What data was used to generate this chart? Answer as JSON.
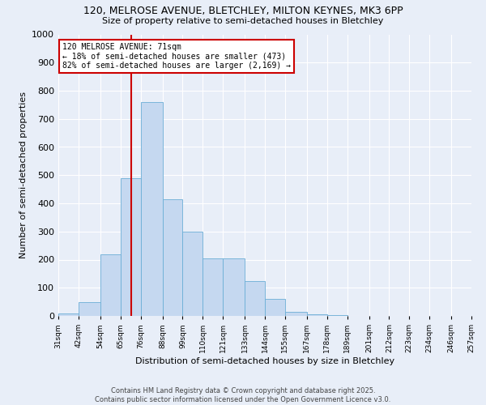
{
  "title_line1": "120, MELROSE AVENUE, BLETCHLEY, MILTON KEYNES, MK3 6PP",
  "title_line2": "Size of property relative to semi-detached houses in Bletchley",
  "xlabel": "Distribution of semi-detached houses by size in Bletchley",
  "ylabel": "Number of semi-detached properties",
  "bin_labels": [
    "31sqm",
    "42sqm",
    "54sqm",
    "65sqm",
    "76sqm",
    "88sqm",
    "99sqm",
    "110sqm",
    "121sqm",
    "133sqm",
    "144sqm",
    "155sqm",
    "167sqm",
    "178sqm",
    "189sqm",
    "201sqm",
    "212sqm",
    "223sqm",
    "234sqm",
    "246sqm",
    "257sqm"
  ],
  "bin_edges": [
    31,
    42,
    54,
    65,
    76,
    88,
    99,
    110,
    121,
    133,
    144,
    155,
    167,
    178,
    189,
    201,
    212,
    223,
    234,
    246,
    257
  ],
  "bar_heights": [
    10,
    50,
    220,
    490,
    760,
    415,
    300,
    205,
    205,
    125,
    60,
    15,
    5,
    2,
    0,
    0,
    0,
    0,
    0,
    0
  ],
  "bar_color": "#c5d8f0",
  "bar_edge_color": "#6baed6",
  "property_line_x": 71,
  "annotation_title": "120 MELROSE AVENUE: 71sqm",
  "annotation_line1": "← 18% of semi-detached houses are smaller (473)",
  "annotation_line2": "82% of semi-detached houses are larger (2,169) →",
  "annotation_box_color": "#ffffff",
  "annotation_box_edge": "#cc0000",
  "vline_color": "#cc0000",
  "ylim": [
    0,
    1000
  ],
  "yticks": [
    0,
    100,
    200,
    300,
    400,
    500,
    600,
    700,
    800,
    900,
    1000
  ],
  "background_color": "#e8eef8",
  "grid_color": "#ffffff",
  "footer_line1": "Contains HM Land Registry data © Crown copyright and database right 2025.",
  "footer_line2": "Contains public sector information licensed under the Open Government Licence v3.0."
}
